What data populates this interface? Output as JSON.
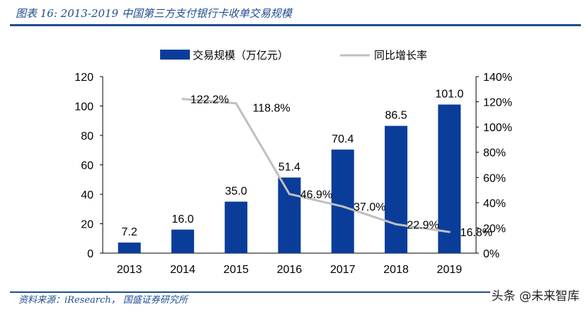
{
  "title": "图表 16: 2013-2019 中国第三方支付银行卡收单交易规模",
  "source": "资料来源：iResearch，  国盛证券研究所",
  "watermark": "头条 @未来智库",
  "chart_data": {
    "type": "bar+line",
    "categories": [
      "2013",
      "2014",
      "2015",
      "2016",
      "2017",
      "2018",
      "2019"
    ],
    "series": [
      {
        "name": "交易规模（万亿元）",
        "type": "bar",
        "axis": "left",
        "color": "#0a3d9a",
        "values": [
          7.2,
          16.0,
          35.0,
          51.4,
          70.4,
          86.5,
          101.0
        ],
        "labels": [
          "7.2",
          "16.0",
          "35.0",
          "51.4",
          "70.4",
          "86.5",
          "101.0"
        ]
      },
      {
        "name": "同比增长率",
        "type": "line",
        "axis": "right",
        "color": "#bfbfbf",
        "values": [
          null,
          122.2,
          118.8,
          46.9,
          37.0,
          22.9,
          16.8
        ],
        "labels": [
          "",
          "122.2%",
          "118.8%",
          "46.9%",
          "37.0%",
          "22.9%",
          "16.8%"
        ]
      }
    ],
    "left_axis": {
      "ylim": [
        0,
        120
      ],
      "ticks": [
        "0",
        "20",
        "40",
        "60",
        "80",
        "100",
        "120"
      ]
    },
    "right_axis": {
      "ylim": [
        0,
        140
      ],
      "ticks": [
        "0%",
        "20%",
        "40%",
        "60%",
        "80%",
        "100%",
        "120%",
        "140%"
      ]
    },
    "legend_position": "top",
    "grid": false
  }
}
